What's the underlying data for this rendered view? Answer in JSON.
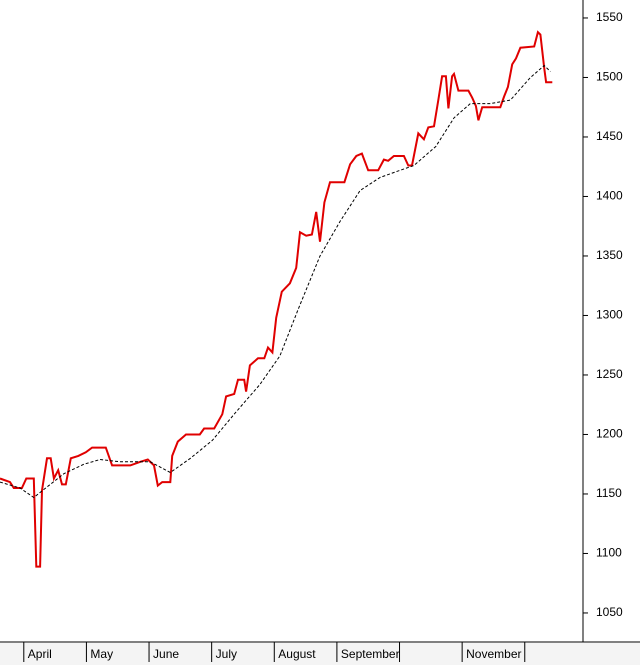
{
  "chart_data": {
    "type": "line",
    "xlim": [
      3.62,
      12.93
    ],
    "xticks": [
      {
        "value": 4,
        "label": "April"
      },
      {
        "value": 5,
        "label": "May"
      },
      {
        "value": 6,
        "label": "June"
      },
      {
        "value": 7,
        "label": "July"
      },
      {
        "value": 8,
        "label": "August"
      },
      {
        "value": 9,
        "label": "September"
      },
      {
        "value": 10,
        "label": null
      },
      {
        "value": 11,
        "label": "November"
      },
      {
        "value": 12,
        "label": null
      }
    ],
    "ylim": [
      1025.6,
      1565.1
    ],
    "yticks": [
      1050,
      1100,
      1150,
      1200,
      1250,
      1300,
      1350,
      1400,
      1450,
      1500,
      1550
    ],
    "y_axis_side": "right",
    "series": [
      {
        "color": "#e00000",
        "style": "solid",
        "x": [
          3.62,
          3.78,
          3.84,
          3.97,
          4.04,
          4.16,
          4.2,
          4.26,
          4.29,
          4.37,
          4.43,
          4.48,
          4.55,
          4.61,
          4.67,
          4.75,
          4.87,
          4.99,
          5.09,
          5.31,
          5.41,
          5.7,
          5.86,
          5.98,
          6.08,
          6.14,
          6.21,
          6.34,
          6.37,
          6.46,
          6.59,
          6.81,
          6.88,
          7.04,
          7.17,
          7.23,
          7.36,
          7.42,
          7.52,
          7.55,
          7.61,
          7.74,
          7.84,
          7.9,
          7.97,
          8.03,
          8.12,
          8.25,
          8.35,
          8.41,
          8.51,
          8.6,
          8.67,
          8.73,
          8.8,
          8.89,
          9.12,
          9.21,
          9.31,
          9.4,
          9.5,
          9.66,
          9.75,
          9.82,
          9.91,
          10.07,
          10.14,
          10.2,
          10.3,
          10.39,
          10.46,
          10.55,
          10.62,
          10.68,
          10.74,
          10.78,
          10.84,
          10.87,
          10.94,
          11.1,
          11.16,
          11.22,
          11.26,
          11.32,
          11.61,
          11.67,
          11.73,
          11.8,
          11.86,
          11.93,
          12.15,
          12.21,
          12.25,
          12.31,
          12.34,
          12.44
        ],
        "values": [
          1163,
          1160,
          1155,
          1155,
          1163,
          1163,
          1089,
          1089,
          1153,
          1180,
          1180,
          1163,
          1170,
          1158,
          1158,
          1180,
          1182,
          1185,
          1189,
          1189,
          1174,
          1174,
          1177,
          1179,
          1174,
          1157,
          1160,
          1160,
          1182,
          1194,
          1200,
          1200,
          1205,
          1205,
          1217,
          1232,
          1234,
          1246,
          1246,
          1236,
          1258,
          1264,
          1264,
          1273,
          1269,
          1298,
          1320,
          1327,
          1340,
          1370,
          1367,
          1368,
          1387,
          1362,
          1395,
          1412,
          1412,
          1427,
          1434,
          1436,
          1422,
          1422,
          1431,
          1430,
          1434,
          1434,
          1426,
          1426,
          1453,
          1448,
          1458,
          1459,
          1481,
          1501,
          1501,
          1474,
          1501,
          1503,
          1489,
          1489,
          1483,
          1476,
          1464,
          1475,
          1475,
          1484,
          1492,
          1511,
          1516,
          1525,
          1526,
          1538,
          1536,
          1508,
          1496,
          1496
        ]
      },
      {
        "color": "#000000",
        "style": "dashed",
        "x": [
          3.62,
          3.94,
          4.16,
          4.35,
          4.64,
          4.96,
          5.22,
          5.54,
          6.02,
          6.34,
          6.66,
          7.01,
          7.39,
          7.77,
          8.09,
          8.38,
          8.73,
          9.05,
          9.37,
          9.69,
          10.01,
          10.23,
          10.58,
          10.87,
          11.13,
          11.45,
          11.77,
          12.09,
          12.31,
          12.41
        ],
        "values": [
          1160,
          1155,
          1147,
          1155,
          1167,
          1175,
          1179,
          1177,
          1177,
          1168,
          1180,
          1195,
          1219,
          1242,
          1266,
          1305,
          1350,
          1379,
          1405,
          1416,
          1422,
          1426,
          1442,
          1466,
          1478,
          1478,
          1481,
          1500,
          1510,
          1505
        ]
      }
    ]
  }
}
